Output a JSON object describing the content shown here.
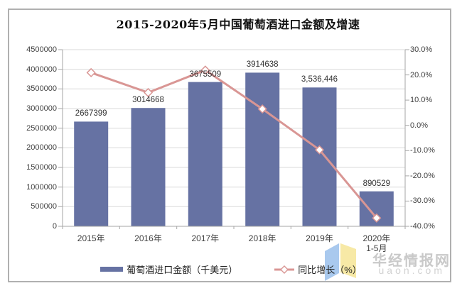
{
  "title": "2015-2020年5月中国葡萄酒进口金额及增速",
  "chart_data": {
    "type": "bar+line combo",
    "title": "2015-2020年5月中国葡萄酒进口金额及增速",
    "categories": [
      {
        "label": "2015年"
      },
      {
        "label": "2016年"
      },
      {
        "label": "2017年"
      },
      {
        "label": "2018年"
      },
      {
        "label": "2019年"
      },
      {
        "label": "2020年",
        "sub": "1-5月"
      }
    ],
    "series": [
      {
        "name": "葡萄酒进口金额（千美元）",
        "type": "bar",
        "axis": "left",
        "color": "#6672A3",
        "values": [
          2667399,
          3014668,
          3675509,
          3914638,
          3536446,
          890529
        ],
        "value_labels": [
          "2667399",
          "3014668",
          "3675509",
          "3914638",
          "3,536,446",
          "890529"
        ]
      },
      {
        "name": "同比增长（%）",
        "type": "line",
        "axis": "right",
        "color": "#D99694",
        "marker": "diamond-white",
        "values": [
          20.9,
          13.0,
          21.9,
          6.5,
          -9.7,
          -36.7
        ]
      }
    ],
    "left_axis": {
      "min": 0,
      "max": 4500000,
      "step": 500000,
      "ticks": [
        "0",
        "500000",
        "1000000",
        "1500000",
        "2000000",
        "2500000",
        "3000000",
        "3500000",
        "4000000",
        "4500000"
      ]
    },
    "right_axis": {
      "min": -40,
      "max": 30,
      "step": 10,
      "ticks": [
        "-40.0%",
        "-30.0%",
        "-20.0%",
        "-10.0%",
        "0.0%",
        "10.0%",
        "20.0%",
        "30.0%"
      ]
    },
    "grid": "horizontal",
    "legend_position": "bottom"
  },
  "legend": {
    "bar_label": "葡萄酒进口金额（千美元）",
    "line_label": "同比增长（%）"
  },
  "watermark": {
    "site_name": "华经情报网",
    "domain": "uaon.com"
  },
  "colors": {
    "bar": "#6672A3",
    "line": "#D99694",
    "marker_fill": "#FFFFFF",
    "gridline": "#D9D9D9",
    "axis": "#A6A6A6",
    "logo_blue": "#A9C9EE",
    "logo_yellow": "#F7E9A6"
  }
}
